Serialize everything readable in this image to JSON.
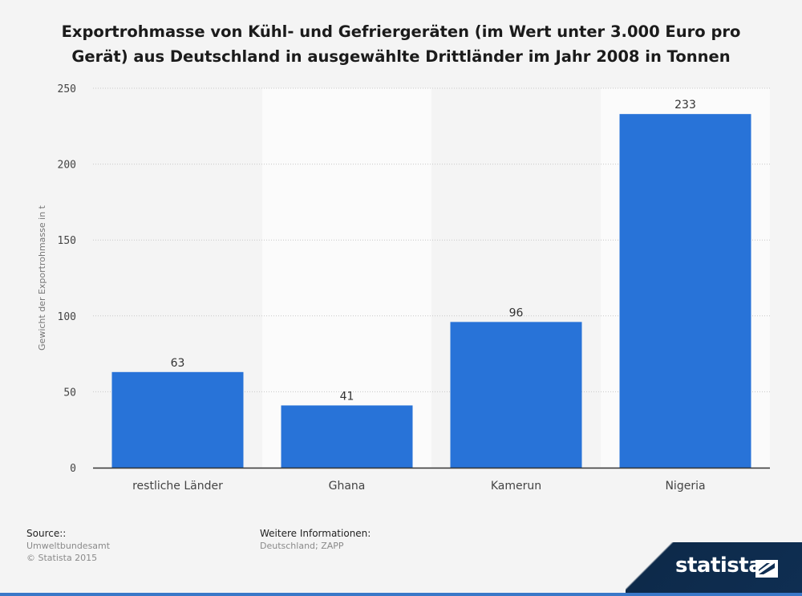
{
  "chart_data": {
    "type": "bar",
    "title": "Exportrohmasse von Kühl- und Gefriergeräten (im Wert unter 3.000 Euro pro Gerät) aus Deutschland in ausgewählte Drittländer im Jahr 2008 in Tonnen",
    "title_lines": [
      "Exportrohmasse von Kühl- und Gefriergeräten (im Wert unter 3.000 Euro pro",
      "Gerät) aus Deutschland in ausgewählte Drittländer im Jahr 2008 in Tonnen"
    ],
    "categories": [
      "restliche Länder",
      "Ghana",
      "Kamerun",
      "Nigeria"
    ],
    "values": [
      63,
      41,
      96,
      233
    ],
    "value_labels": [
      "63",
      "41",
      "96",
      "233"
    ],
    "xlabel": "",
    "ylabel": "Gewicht der Exportrohmasse in t",
    "ylim": [
      0,
      250
    ],
    "yticks": [
      0,
      50,
      100,
      150,
      200,
      250
    ],
    "ytick_labels": [
      "0",
      "50",
      "100",
      "150",
      "200",
      "250"
    ],
    "grid": true,
    "bar_color": "#2873d8"
  },
  "footer": {
    "source_heading": "Source::",
    "source_line1": "Umweltbundesamt",
    "source_line2": "© Statista 2015",
    "info_heading": "Weitere Informationen:",
    "info_line1": "Deutschland; ZAPP"
  },
  "brand": {
    "logo_text": "statista",
    "logo_icon": "statista-logo-icon"
  }
}
